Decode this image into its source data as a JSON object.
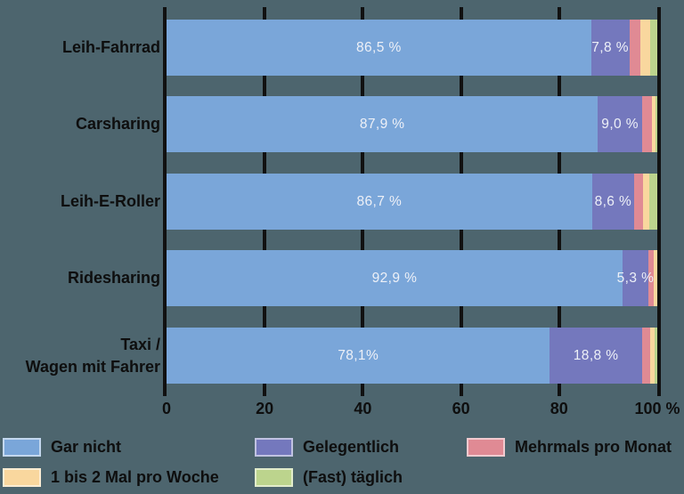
{
  "colors": {
    "background": "#4d656e",
    "axis_line": "#111111",
    "label_text": "#0e0e0e",
    "bar_value_text": "#edf0f7"
  },
  "chart_data": {
    "type": "bar",
    "variant": "horizontal-stacked",
    "title": "",
    "xlabel": "",
    "ylabel": "",
    "xlim": [
      0,
      100
    ],
    "x_unit": "%",
    "grid": "vertical tick lines every 20%",
    "legend_position": "bottom",
    "categories": [
      {
        "lines": [
          "Leih-Fahrrad"
        ]
      },
      {
        "lines": [
          "Carsharing"
        ]
      },
      {
        "lines": [
          "Leih-E-Roller"
        ]
      },
      {
        "lines": [
          "Ridesharing"
        ]
      },
      {
        "lines": [
          "Taxi /",
          "Wagen mit Fahrer"
        ]
      }
    ],
    "series": [
      {
        "name": "Gar nicht",
        "color": "#7aa6d9",
        "values": [
          86.5,
          87.9,
          86.7,
          92.9,
          78.1
        ],
        "labels": [
          "86,5 %",
          "87,9 %",
          "86,7 %",
          "92,9 %",
          "78,1%"
        ]
      },
      {
        "name": "Gelegentlich",
        "color": "#7478bd",
        "values": [
          7.8,
          9.0,
          8.6,
          5.3,
          18.8
        ],
        "labels": [
          "7,8 %",
          "9,0 %",
          "8,6 %",
          "5,3 %",
          "18,8 %"
        ]
      },
      {
        "name": "Mehrmals pro Monat",
        "color": "#e08a94",
        "values": [
          2.2,
          2.0,
          1.8,
          1.1,
          1.6
        ],
        "labels": [
          "",
          "",
          "",
          "",
          ""
        ]
      },
      {
        "name": "1 bis 2 Mal pro Woche",
        "color": "#f9d79e",
        "values": [
          2.0,
          0.7,
          1.3,
          0.7,
          0.9
        ],
        "labels": [
          "",
          "",
          "",
          "",
          ""
        ]
      },
      {
        "name": "(Fast) täglich",
        "color": "#bcd48d",
        "values": [
          1.5,
          0.4,
          1.6,
          0.0,
          0.6
        ],
        "labels": [
          "",
          "",
          "",
          "",
          ""
        ]
      }
    ],
    "x_ticks": [
      "0",
      "20",
      "40",
      "60",
      "80",
      "100 %"
    ]
  },
  "legend": {
    "items": [
      {
        "label": "Gar nicht",
        "color": "#7aa6d9"
      },
      {
        "label": "Gelegentlich",
        "color": "#7478bd"
      },
      {
        "label": "Mehrmals pro Monat",
        "color": "#e08a94"
      },
      {
        "label": "1 bis 2 Mal pro Woche",
        "color": "#f9d79e"
      },
      {
        "label": "(Fast) täglich",
        "color": "#bcd48d"
      }
    ]
  }
}
